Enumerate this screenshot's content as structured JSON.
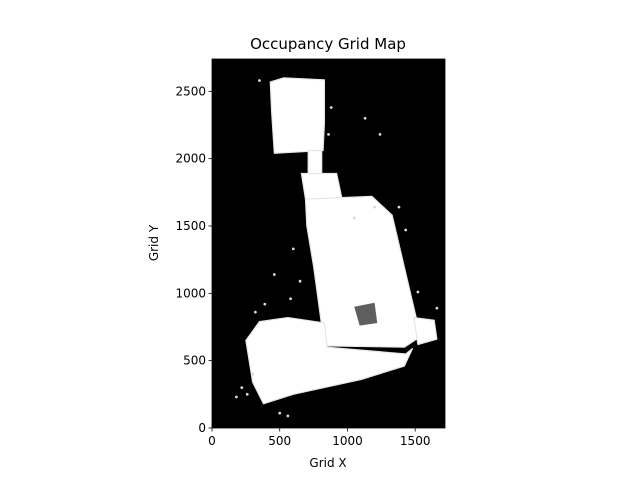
{
  "chart_data": {
    "type": "heatmap",
    "title": "Occupancy Grid Map",
    "xlabel": "Grid X",
    "ylabel": "Grid Y",
    "xlim": [
      0,
      1720
    ],
    "ylim": [
      0,
      2740
    ],
    "xticks": [
      0,
      500,
      1000,
      1500
    ],
    "yticks": [
      0,
      500,
      1000,
      1500,
      2000,
      2500
    ],
    "colormap": "gray",
    "background_value": "occupied / unknown (black)",
    "free_space_color": "#ffffff",
    "occupied_color": "#000000",
    "free_regions": [
      {
        "label": "upper room",
        "polygon": [
          [
            430,
            2570
          ],
          [
            530,
            2600
          ],
          [
            830,
            2585
          ],
          [
            830,
            2270
          ],
          [
            820,
            2060
          ],
          [
            460,
            2040
          ],
          [
            440,
            2350
          ]
        ]
      },
      {
        "label": "narrow corridor",
        "polygon": [
          [
            710,
            2060
          ],
          [
            810,
            2060
          ],
          [
            810,
            1880
          ],
          [
            710,
            1880
          ]
        ]
      },
      {
        "label": "corridor junction",
        "polygon": [
          [
            660,
            1890
          ],
          [
            920,
            1890
          ],
          [
            960,
            1700
          ],
          [
            690,
            1700
          ]
        ]
      },
      {
        "label": "main hall",
        "polygon": [
          [
            690,
            1700
          ],
          [
            1180,
            1720
          ],
          [
            1330,
            1580
          ],
          [
            1540,
            680
          ],
          [
            1420,
            600
          ],
          [
            830,
            610
          ],
          [
            750,
            1200
          ],
          [
            700,
            1500
          ]
        ]
      },
      {
        "label": "lower wing",
        "polygon": [
          [
            350,
            790
          ],
          [
            560,
            820
          ],
          [
            830,
            780
          ],
          [
            850,
            600
          ],
          [
            1430,
            550
          ],
          [
            1480,
            590
          ],
          [
            1420,
            460
          ],
          [
            1100,
            360
          ],
          [
            600,
            250
          ],
          [
            380,
            180
          ],
          [
            300,
            340
          ],
          [
            250,
            650
          ]
        ]
      },
      {
        "label": "east alcove",
        "polygon": [
          [
            1490,
            820
          ],
          [
            1640,
            800
          ],
          [
            1660,
            660
          ],
          [
            1520,
            620
          ]
        ]
      }
    ],
    "occupied_patches": [
      {
        "label": "hall obstacle",
        "polygon": [
          [
            1050,
            900
          ],
          [
            1200,
            930
          ],
          [
            1220,
            780
          ],
          [
            1090,
            760
          ]
        ]
      }
    ],
    "speckles": [
      [
        300,
        400
      ],
      [
        220,
        300
      ],
      [
        260,
        250
      ],
      [
        180,
        230
      ],
      [
        560,
        90
      ],
      [
        500,
        110
      ],
      [
        320,
        860
      ],
      [
        390,
        920
      ],
      [
        1380,
        1640
      ],
      [
        1430,
        1470
      ],
      [
        1520,
        1010
      ],
      [
        1660,
        890
      ],
      [
        1200,
        1640
      ],
      [
        1050,
        1560
      ],
      [
        600,
        1330
      ],
      [
        650,
        1090
      ],
      [
        580,
        960
      ],
      [
        460,
        1140
      ],
      [
        350,
        2580
      ],
      [
        880,
        2380
      ],
      [
        860,
        2180
      ],
      [
        1130,
        2300
      ],
      [
        1240,
        2180
      ]
    ]
  }
}
